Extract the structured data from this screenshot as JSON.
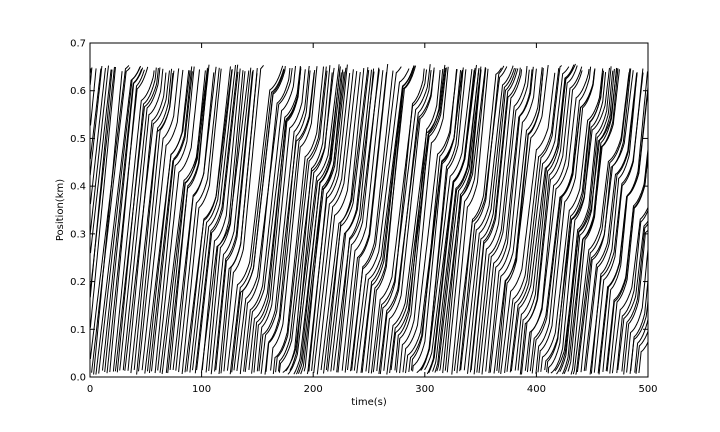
{
  "chart_data": {
    "type": "line",
    "title": "",
    "xlabel": "time(s)",
    "ylabel": "Position(km)",
    "xlim": [
      0,
      500
    ],
    "ylim": [
      0.0,
      0.7
    ],
    "x_ticks": [
      "0",
      "100",
      "200",
      "300",
      "400",
      "500"
    ],
    "y_ticks": [
      "0.0",
      "0.1",
      "0.2",
      "0.3",
      "0.4",
      "0.5",
      "0.6",
      "0.7"
    ],
    "grid": false,
    "legend": "none",
    "line_color": "#000000",
    "description_of_series": "vehicle trajectories (time-space diagram); each line starts near 0.0 km and ends near 0.65 km",
    "road_length_km": 0.65,
    "trajectory_count": 220,
    "free_flow_speed_kmps": 0.022,
    "congestion_waves": [
      {
        "t0": 30,
        "x0": 0.65
      },
      {
        "t0": 150,
        "x0": 0.65
      },
      {
        "t0": 270,
        "x0": 0.65
      },
      {
        "t0": 360,
        "x0": 0.65
      },
      {
        "t0": 420,
        "x0": 0.65
      }
    ],
    "wave_speed_kmps": -0.0045,
    "queued_speed_kmps": 0.0015
  }
}
